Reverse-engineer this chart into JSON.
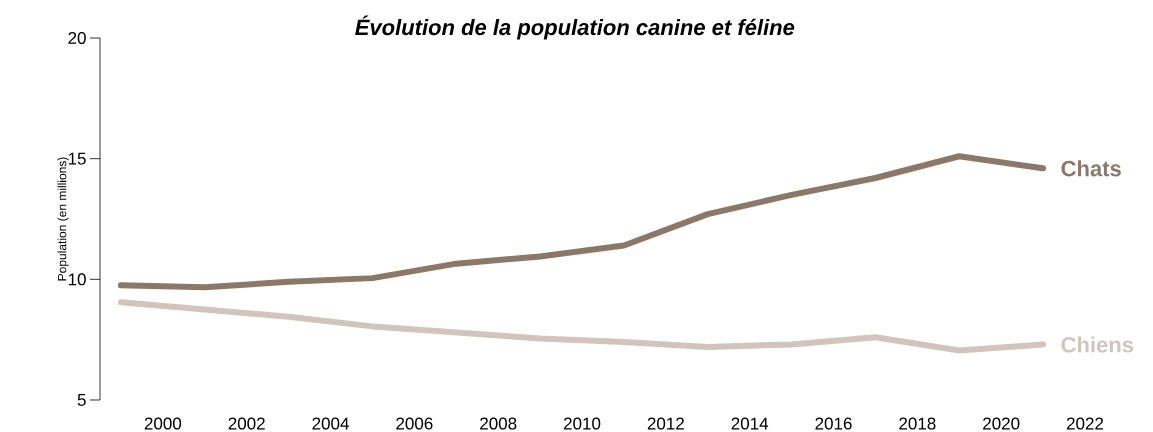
{
  "chart_data": {
    "type": "line",
    "title": "*Évolution de la population canine et féline*",
    "ylabel": "Population (en millions)",
    "x": [
      1999,
      2001,
      2003,
      2005,
      2007,
      2009,
      2011,
      2013,
      2015,
      2017,
      2019,
      2021
    ],
    "series": [
      {
        "name": "Chats",
        "color": "#8c7868",
        "values": [
          9.75,
          9.67,
          9.9,
          10.05,
          10.65,
          10.95,
          11.4,
          12.7,
          13.5,
          14.2,
          15.1,
          14.6
        ]
      },
      {
        "name": "Chiens",
        "color": "#d0c4bc",
        "values": [
          9.05,
          8.75,
          8.45,
          8.05,
          7.8,
          7.55,
          7.4,
          7.2,
          7.3,
          7.6,
          7.05,
          7.3
        ]
      }
    ],
    "xlim": [
      1998.5,
      2022
    ],
    "xticks": [
      2000,
      2002,
      2004,
      2006,
      2008,
      2010,
      2012,
      2014,
      2016,
      2018,
      2020,
      2022
    ],
    "ylim": [
      5,
      20
    ],
    "yticks": [
      5,
      10,
      15,
      20
    ],
    "line_style": "solid"
  }
}
